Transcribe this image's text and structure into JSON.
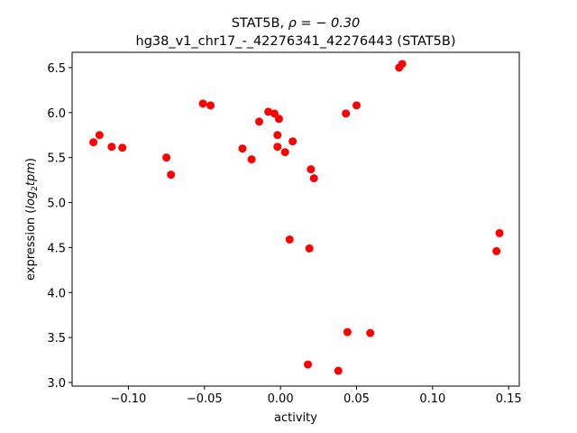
{
  "chart_data": {
    "type": "scatter",
    "title_line1_prefix": "STAT5B, ",
    "title_line1_math": "ρ = − 0.30",
    "title_line2": "hg38_v1_chr17_-_42276341_42276443 (STAT5B)",
    "xlabel": "activity",
    "ylabel_prefix": "expression (",
    "ylabel_math_log": "log",
    "ylabel_math_sub": "2",
    "ylabel_math_tpm": "tpm",
    "ylabel_suffix": ")",
    "xlim": [
      -0.137,
      0.157
    ],
    "ylim": [
      2.96,
      6.67
    ],
    "xticks": [
      -0.1,
      -0.05,
      0.0,
      0.05,
      0.1,
      0.15
    ],
    "xtick_labels": [
      "−0.10",
      "−0.05",
      "0.00",
      "0.05",
      "0.10",
      "0.15"
    ],
    "yticks": [
      3.0,
      3.5,
      4.0,
      4.5,
      5.0,
      5.5,
      6.0,
      6.5
    ],
    "ytick_labels": [
      "3.0",
      "3.5",
      "4.0",
      "4.5",
      "5.0",
      "5.5",
      "6.0",
      "6.5"
    ],
    "marker_color": "#ff0000",
    "grid": false,
    "points": [
      {
        "x": -0.123,
        "y": 5.67
      },
      {
        "x": -0.119,
        "y": 5.75
      },
      {
        "x": -0.111,
        "y": 5.62
      },
      {
        "x": -0.104,
        "y": 5.61
      },
      {
        "x": -0.075,
        "y": 5.5
      },
      {
        "x": -0.072,
        "y": 5.31
      },
      {
        "x": -0.051,
        "y": 6.1
      },
      {
        "x": -0.046,
        "y": 6.08
      },
      {
        "x": -0.025,
        "y": 5.6
      },
      {
        "x": -0.019,
        "y": 5.48
      },
      {
        "x": -0.014,
        "y": 5.9
      },
      {
        "x": -0.008,
        "y": 6.01
      },
      {
        "x": -0.004,
        "y": 5.99
      },
      {
        "x": -0.002,
        "y": 5.75
      },
      {
        "x": -0.001,
        "y": 5.93
      },
      {
        "x": -0.002,
        "y": 5.62
      },
      {
        "x": 0.003,
        "y": 5.56
      },
      {
        "x": 0.008,
        "y": 5.68
      },
      {
        "x": 0.006,
        "y": 4.59
      },
      {
        "x": 0.02,
        "y": 5.37
      },
      {
        "x": 0.022,
        "y": 5.27
      },
      {
        "x": 0.019,
        "y": 4.49
      },
      {
        "x": 0.018,
        "y": 3.2
      },
      {
        "x": 0.038,
        "y": 3.13
      },
      {
        "x": 0.043,
        "y": 5.99
      },
      {
        "x": 0.05,
        "y": 6.08
      },
      {
        "x": 0.044,
        "y": 3.56
      },
      {
        "x": 0.059,
        "y": 3.55
      },
      {
        "x": 0.078,
        "y": 6.5
      },
      {
        "x": 0.08,
        "y": 6.54
      },
      {
        "x": 0.142,
        "y": 4.46
      },
      {
        "x": 0.144,
        "y": 4.66
      }
    ]
  }
}
